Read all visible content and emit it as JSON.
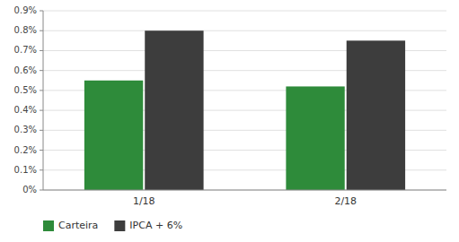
{
  "chart_data": {
    "type": "bar",
    "categories": [
      "1/18",
      "2/18"
    ],
    "series": [
      {
        "name": "Carteira",
        "color": "#2e8b3a",
        "values": [
          0.0055,
          0.0052
        ]
      },
      {
        "name": "IPCA + 6%",
        "color": "#3d3d3d",
        "values": [
          0.008,
          0.0075
        ]
      }
    ],
    "ylim": [
      0,
      0.009
    ],
    "yticks": [
      {
        "value": 0.0,
        "label": "0%"
      },
      {
        "value": 0.001,
        "label": "0.1%"
      },
      {
        "value": 0.002,
        "label": "0.2%"
      },
      {
        "value": 0.003,
        "label": "0.3%"
      },
      {
        "value": 0.004,
        "label": "0.4%"
      },
      {
        "value": 0.005,
        "label": "0.5%"
      },
      {
        "value": 0.006,
        "label": "0.6%"
      },
      {
        "value": 0.007,
        "label": "0.7%"
      },
      {
        "value": 0.008,
        "label": "0.8%"
      },
      {
        "value": 0.009,
        "label": "0.9%"
      }
    ],
    "grid": true,
    "legend": "bottom"
  }
}
